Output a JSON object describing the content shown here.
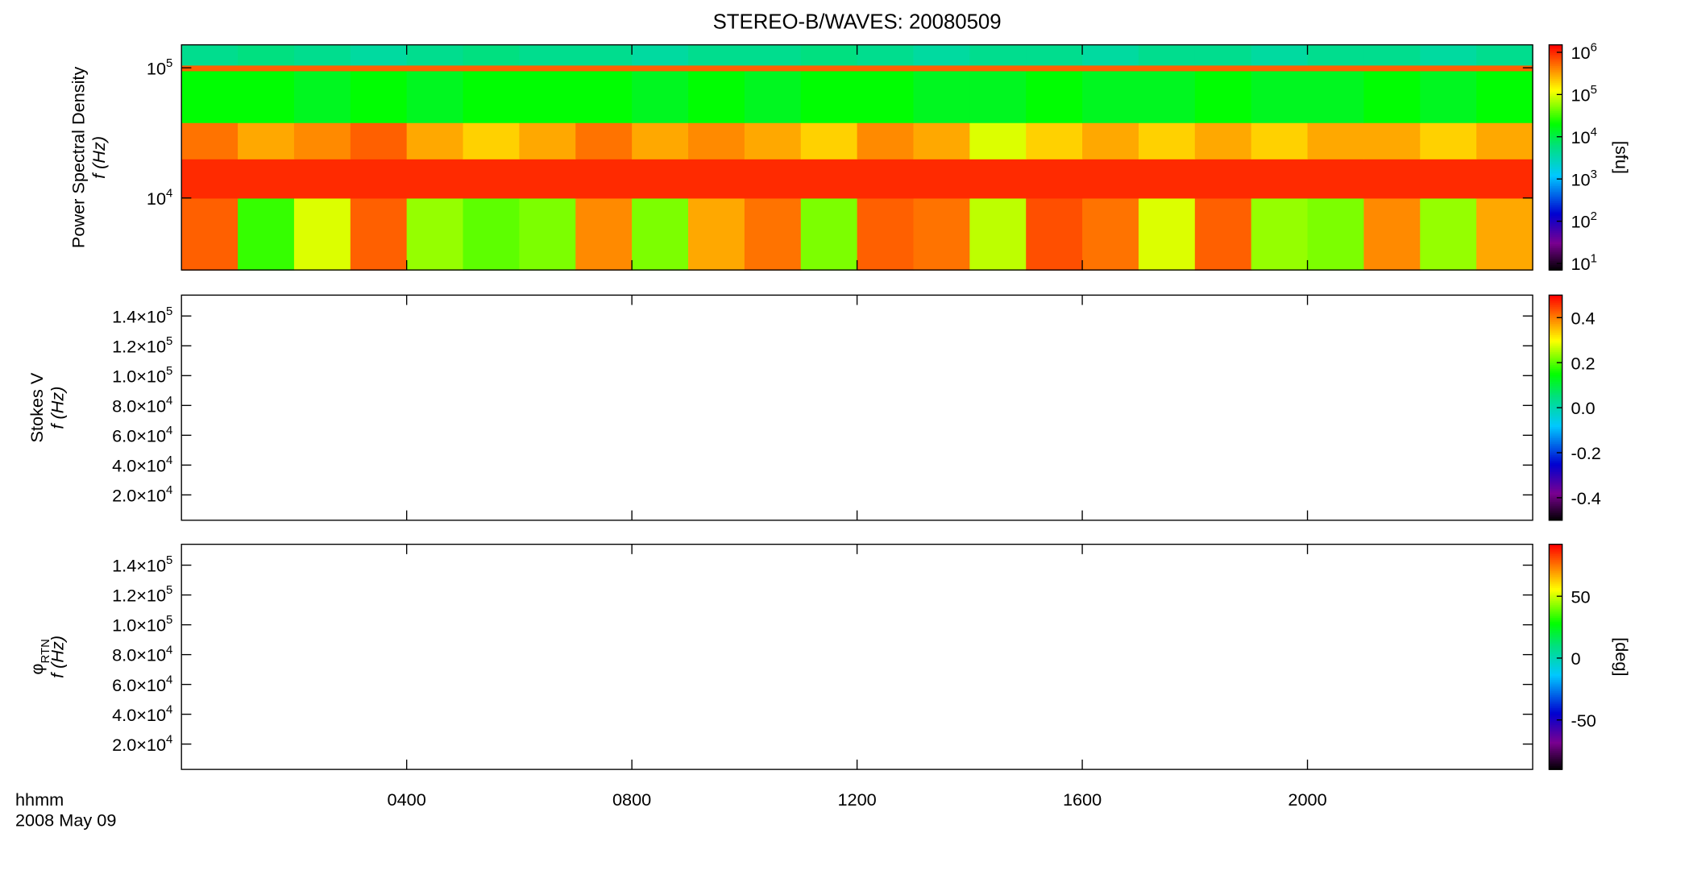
{
  "chart_data": [
    {
      "type": "heatmap",
      "title": "STEREO-B/WAVES: 20080509",
      "ylabel": "Power Spectral Density",
      "ylabel2": "f (Hz)",
      "ylog": true,
      "ylim": [
        2800,
        150000
      ],
      "yticks": [
        {
          "value": 10000,
          "label": "10",
          "exponent": "4"
        },
        {
          "value": 100000,
          "label": "10",
          "exponent": "5"
        }
      ],
      "x_edges": [
        0,
        1,
        2,
        3,
        4,
        5,
        6,
        7,
        8,
        9,
        10,
        11,
        12,
        13,
        14,
        15,
        16,
        17,
        18,
        19,
        20,
        21,
        22,
        23,
        24
      ],
      "y_edges": [
        2800,
        10000,
        20000,
        38000,
        95000,
        105000,
        150000
      ],
      "z": [
        [
          600000,
          30000,
          100000,
          600000,
          60000,
          40000,
          50000,
          400000,
          50000,
          300000,
          500000,
          50000,
          600000,
          500000,
          80000,
          700000,
          500000,
          100000,
          600000,
          60000,
          50000,
          400000,
          60000,
          300000
        ],
        [
          1000000,
          1000000,
          1000000,
          1000000,
          1000000,
          1000000,
          1000000,
          1000000,
          1000000,
          1000000,
          1000000,
          1000000,
          1000000,
          1000000,
          1000000,
          1000000,
          1000000,
          1000000,
          1000000,
          1000000,
          1000000,
          1000000,
          1000000,
          1000000
        ],
        [
          500000,
          300000,
          400000,
          600000,
          300000,
          200000,
          300000,
          500000,
          300000,
          400000,
          300000,
          200000,
          400000,
          300000,
          100000,
          200000,
          300000,
          200000,
          300000,
          200000,
          300000,
          300000,
          200000,
          300000
        ],
        [
          20000,
          20000,
          15000,
          20000,
          15000,
          20000,
          20000,
          20000,
          15000,
          20000,
          15000,
          20000,
          20000,
          15000,
          15000,
          20000,
          15000,
          15000,
          20000,
          15000,
          15000,
          20000,
          15000,
          20000
        ],
        [
          600000,
          600000,
          600000,
          600000,
          600000,
          600000,
          600000,
          600000,
          600000,
          600000,
          600000,
          600000,
          600000,
          600000,
          600000,
          600000,
          600000,
          600000,
          600000,
          600000,
          600000,
          600000,
          600000,
          600000
        ],
        [
          5000,
          6000,
          5000,
          4000,
          5000,
          6000,
          5000,
          5000,
          4000,
          5000,
          5000,
          6000,
          5000,
          4000,
          5000,
          5000,
          4000,
          5000,
          5000,
          4000,
          5000,
          5000,
          4000,
          5000
        ]
      ],
      "colormap": "rainbow",
      "colorbar": {
        "log": true,
        "clim": [
          7,
          1500000
        ],
        "label": "[sfu]",
        "ticks": [
          {
            "value": 10,
            "label": "10",
            "exponent": "1"
          },
          {
            "value": 100,
            "label": "10",
            "exponent": "2"
          },
          {
            "value": 1000,
            "label": "10",
            "exponent": "3"
          },
          {
            "value": 10000,
            "label": "10",
            "exponent": "4"
          },
          {
            "value": 100000,
            "label": "10",
            "exponent": "5"
          },
          {
            "value": 1000000,
            "label": "10",
            "exponent": "6"
          }
        ]
      }
    },
    {
      "type": "heatmap",
      "ylabel": "Stokes V",
      "ylabel2": "f (Hz)",
      "ylog": false,
      "ylim": [
        3000,
        154000
      ],
      "yticks": [
        {
          "value": 20000,
          "label": "2.0×10",
          "exponent": "4"
        },
        {
          "value": 40000,
          "label": "4.0×10",
          "exponent": "4"
        },
        {
          "value": 60000,
          "label": "6.0×10",
          "exponent": "4"
        },
        {
          "value": 80000,
          "label": "8.0×10",
          "exponent": "4"
        },
        {
          "value": 100000,
          "label": "1.0×10",
          "exponent": "5"
        },
        {
          "value": 120000,
          "label": "1.2×10",
          "exponent": "5"
        },
        {
          "value": 140000,
          "label": "1.4×10",
          "exponent": "5"
        }
      ],
      "colormap": "rainbow",
      "colorbar": {
        "log": false,
        "clim": [
          -0.5,
          0.5
        ],
        "ticks": [
          -0.4,
          -0.2,
          {
            "value": 0,
            "label": "0.0"
          },
          0.2,
          0.4
        ]
      }
    },
    {
      "type": "heatmap",
      "ylabel": "φ",
      "ylabel_sub": "RTN",
      "ylabel2": "f (Hz)",
      "ylog": false,
      "ylim": [
        3000,
        154000
      ],
      "yticks": [
        {
          "value": 20000,
          "label": "2.0×10",
          "exponent": "4"
        },
        {
          "value": 40000,
          "label": "4.0×10",
          "exponent": "4"
        },
        {
          "value": 60000,
          "label": "6.0×10",
          "exponent": "4"
        },
        {
          "value": 80000,
          "label": "8.0×10",
          "exponent": "4"
        },
        {
          "value": 100000,
          "label": "1.0×10",
          "exponent": "5"
        },
        {
          "value": 120000,
          "label": "1.2×10",
          "exponent": "5"
        },
        {
          "value": 140000,
          "label": "1.4×10",
          "exponent": "5"
        }
      ],
      "colormap": "rainbow",
      "colorbar": {
        "log": false,
        "clim": [
          -90,
          92
        ],
        "label": "[deg]",
        "ticks": [
          -50,
          0,
          50
        ]
      },
      "xlabel": "hhmm",
      "date": "2008 May 09",
      "xlim": [
        0,
        24
      ],
      "xticks": [
        {
          "value": 4,
          "label": "0400"
        },
        {
          "value": 8,
          "label": "0800"
        },
        {
          "value": 12,
          "label": "1200"
        },
        {
          "value": 16,
          "label": "1600"
        },
        {
          "value": 20,
          "label": "2000"
        }
      ]
    }
  ]
}
